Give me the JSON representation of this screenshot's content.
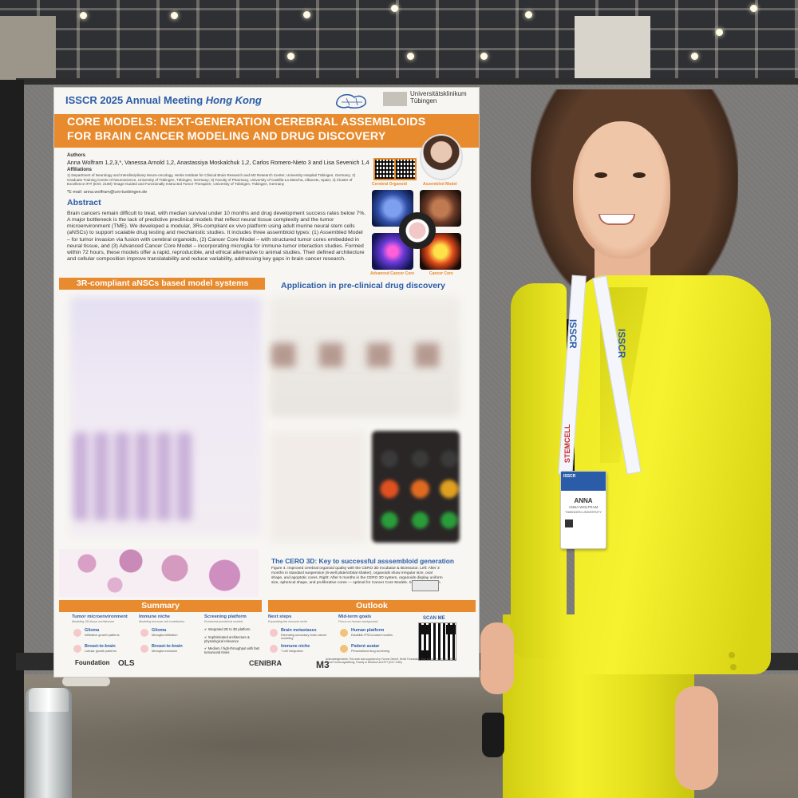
{
  "poster": {
    "conference": "ISSCR 2025 Annual Meeting",
    "city": "Hong Kong",
    "university": [
      "Universitätsklinikum",
      "Tübingen"
    ],
    "title_line1": "CORE MODELS: NEXT-GENERATION CEREBRAL ASSEMBLOIDS",
    "title_line2": "FOR BRAIN CANCER MODELING AND DRUG DISCOVERY",
    "authors_heading": "Authors",
    "authors": "Anna Wolfram 1,2,3,*, Vanessa Arnold 1,2, Anastassiya Moskalchuk 1,2, Carlos Romero-Nieto 3 and Lisa Sevenich 1,4",
    "affiliations_heading": "Affiliations",
    "affiliations": "1) Department of Neurology and Interdisciplinary Neuro-oncology, Hertie Institute for Clinical Brain Research and M3 Research Center, University Hospital Tübingen, Germany; 2) Graduate Training Centre of Neuroscience, University of Tübingen, Tübingen, Germany; 3) Faculty of Pharmacy, University of Castilla-La Mancha, Albacete, Spain; 4) Cluster of Excellence iFIT (EXC 2180) 'Image-Guided and Functionally Instructed Tumor Therapies', University of Tübingen, Tübingen, Germany",
    "email": "*E-mail: anna.wolfram@uni-tuebingen.de",
    "abstract_heading": "Abstract",
    "abstract": "Brain cancers remain difficult to treat, with median survival under 10 months and drug development success rates below 7%. A major bottleneck is the lack of predictive preclinical models that reflect neural tissue complexity and the tumor microenvironment (TME). We developed a modular, 3Rs-compliant ex vivo platform using adult murine neural stem cells (aNSCs) to support scalable drug testing and mechanistic studies. It includes three assembloid types: (1) Assembled Model – for tumor invasion via fusion with cerebral organoids, (2) Cancer Core Model – with structured tumor cores embedded in neural tissue, and (3) Advanced Cancer Core Model – incorporating microglia for immune-tumor interaction studies. Formed within 72 hours, these models offer a rapid, reproducible, and ethical alternative to animal studies. Their defined architecture and cellular composition improve translatability and reduce variability, addressing key gaps in brain cancer research.",
    "model_labels": [
      "Cerebral Organoid",
      "Assembled Model",
      "Advanced Cancer Core",
      "Cancer Core"
    ],
    "section_left": "3R-compliant aNSCs based model systems",
    "section_right": "Application in pre-clinical drug discovery",
    "cero_heading": "The CERO 3D: Key to successful asssembloid generation",
    "cero_text": "Figure 4. Improved cerebral organoid quality with the CERO 3D Incubator & Bioreactor. Left: After 3 months in standard suspension (6-well plate/orbital shaker), organoids show irregular size, oval shape, and apoptotic cores. Right: After 5 months in the CERO 3D system, organoids display uniform size, spherical shape, and proliferative cores — optimal for Cancer Core Models. Scale bar: 300 µm.",
    "summary_heading": "Summary",
    "outlook_heading": "Outlook",
    "columns": [
      {
        "title": "Tumor microenvironment",
        "sub": "Modeling 3D tissue architecture",
        "items": [
          {
            "name": "Glioma",
            "desc": "Infiltrative growth patterns"
          },
          {
            "name": "Breast-to-brain",
            "desc": "Lobular growth patterns"
          }
        ]
      },
      {
        "title": "Immune niche",
        "sub": "Modeling immune cell contribution",
        "items": [
          {
            "name": "Glioma",
            "desc": "Microglia infiltration"
          },
          {
            "name": "Breast-to-brain",
            "desc": "Microglia exclusion"
          }
        ]
      },
      {
        "title": "Screening platform",
        "sub": "Enhanced preclinical models",
        "items": [
          {
            "name": "Integrated 2D to 3D platform",
            "desc": ""
          },
          {
            "name": "Sophisticated architecture & physiological relevance",
            "desc": ""
          },
          {
            "name": "Medium / high-throughput with fast turnaround times",
            "desc": ""
          }
        ]
      },
      {
        "title": "Next steps",
        "sub": "Expanding the immune niche",
        "items": [
          {
            "name": "Brain metastases",
            "desc": "Extending secondary brain cancer modeling"
          },
          {
            "name": "Immune niche",
            "desc": "T cell integration"
          }
        ]
      },
      {
        "title": "Mid-term goals",
        "sub": "Focus on human background",
        "items": [
          {
            "name": "Human platform",
            "desc": "Establish iPSCs-based models"
          },
          {
            "name": "Patient avatar",
            "desc": "Personalized drug screening"
          }
        ]
      }
    ],
    "scan_me": "SCAN ME",
    "sponsors": [
      "Foundation",
      "OLS",
      "CENIBRA",
      "M3"
    ],
    "acknowledgements": "Acknowledgements: This work was supported by Yvonne Gebert, Hertie Foundation, Else Kröner-Fresenius-Stiftung; Jacob Forschungsstiftung, Faculty of Medicine and iFIT (EXC 2180)."
  },
  "badge": {
    "lanyard": "ISSCR",
    "lanyard_sponsor": "STEMCELL",
    "header": "ISSCR",
    "name": "ANNA",
    "full_name": "ANNA WOLFRAM",
    "affiliation": "TÜBINGEN UNIVERSITY"
  },
  "colors": {
    "accent_orange": "#e88a2e",
    "accent_blue": "#2b5ca8",
    "jacket_yellow": "#f2ee2a"
  }
}
